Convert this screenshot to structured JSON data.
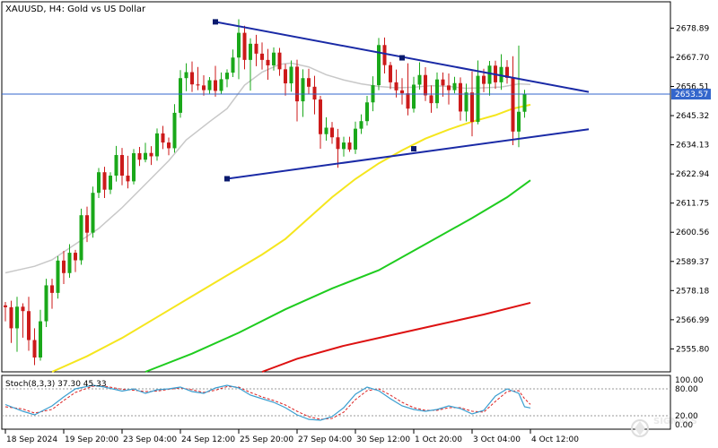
{
  "window": {
    "title": "XAUUSD, H4:  Gold vs US Dollar"
  },
  "indicator": {
    "label": "Stoch(8,3,3) 37.30 45.33"
  },
  "watermark": {
    "text": "SIGNALS"
  },
  "price_tag": {
    "value": "2653.57",
    "color": "#3366cc"
  },
  "colors": {
    "bull": "#1aa81a",
    "bear": "#cc1a1a",
    "sma_grey": "#c8c8c8",
    "sma_yellow": "#f5e61e",
    "sma_green": "#1fcc1f",
    "sma_red": "#dd1111",
    "trendline": "#1a2aa6",
    "stoch_main": "#3a9ed0",
    "stoch_signal": "#dd2222"
  },
  "chart_data": {
    "type": "candlestick",
    "symbol": "XAUUSD",
    "timeframe": "H4",
    "ylim": [
      2547.0,
      2689.0
    ],
    "y_ticks": [
      "2678.89",
      "2667.70",
      "2656.51",
      "2645.32",
      "2634.13",
      "2622.94",
      "2611.75",
      "2600.56",
      "2589.37",
      "2578.18",
      "2566.99",
      "2555.80"
    ],
    "x_ticks": [
      "18 Sep 2024",
      "19 Sep 20:00",
      "23 Sep 04:00",
      "24 Sep 12:00",
      "25 Sep 20:00",
      "27 Sep 04:00",
      "30 Sep 12:00",
      "1 Oct 20:00",
      "3 Oct 04:00",
      "4 Oct 12:00"
    ],
    "x_tick_bar_index": [
      0,
      10,
      20,
      30,
      40,
      50,
      60,
      70,
      80,
      90
    ],
    "candles": [
      [
        2572.5,
        2573.8,
        2566.4,
        2571.8
      ],
      [
        2571.8,
        2574.3,
        2558.1,
        2563.7
      ],
      [
        2563.7,
        2575.8,
        2554.7,
        2572.0
      ],
      [
        2572.0,
        2573.3,
        2560.1,
        2570.3
      ],
      [
        2570.3,
        2575.8,
        2555.1,
        2559.2
      ],
      [
        2559.2,
        2563.7,
        2549.6,
        2552.5
      ],
      [
        2552.5,
        2570.8,
        2551.3,
        2566.4
      ],
      [
        2566.4,
        2582.7,
        2564.2,
        2580.2
      ],
      [
        2580.2,
        2582.7,
        2571.2,
        2577.3
      ],
      [
        2577.3,
        2591.4,
        2575.1,
        2589.7
      ],
      [
        2589.7,
        2593.4,
        2580.7,
        2584.9
      ],
      [
        2584.9,
        2596.0,
        2583.1,
        2592.7
      ],
      [
        2592.7,
        2593.8,
        2585.3,
        2589.8
      ],
      [
        2589.8,
        2609.6,
        2588.1,
        2607.1
      ],
      [
        2607.1,
        2610.4,
        2596.8,
        2600.4
      ],
      [
        2600.4,
        2618.1,
        2598.5,
        2615.7
      ],
      [
        2615.7,
        2625.2,
        2613.7,
        2623.6
      ],
      [
        2623.6,
        2625.7,
        2613.7,
        2616.9
      ],
      [
        2616.9,
        2623.6,
        2615.2,
        2622.3
      ],
      [
        2622.3,
        2633.7,
        2620.0,
        2630.2
      ],
      [
        2630.2,
        2632.9,
        2618.6,
        2622.3
      ],
      [
        2622.3,
        2629.9,
        2617.4,
        2620.1
      ],
      [
        2620.1,
        2632.5,
        2618.9,
        2630.9
      ],
      [
        2630.9,
        2633.3,
        2626.0,
        2628.4
      ],
      [
        2628.4,
        2634.9,
        2627.4,
        2631.0
      ],
      [
        2631.0,
        2633.6,
        2626.4,
        2629.7
      ],
      [
        2629.7,
        2640.4,
        2628.0,
        2638.5
      ],
      [
        2638.5,
        2641.4,
        2632.5,
        2635.0
      ],
      [
        2635.0,
        2636.9,
        2630.1,
        2632.8
      ],
      [
        2632.8,
        2649.7,
        2631.1,
        2646.4
      ],
      [
        2646.4,
        2662.8,
        2644.5,
        2659.7
      ],
      [
        2659.7,
        2665.4,
        2654.7,
        2662.0
      ],
      [
        2662.0,
        2666.1,
        2654.4,
        2657.3
      ],
      [
        2657.3,
        2664.0,
        2655.1,
        2656.9
      ],
      [
        2656.9,
        2660.8,
        2653.0,
        2655.1
      ],
      [
        2655.1,
        2660.1,
        2653.8,
        2658.9
      ],
      [
        2658.9,
        2664.4,
        2652.6,
        2654.8
      ],
      [
        2654.8,
        2661.9,
        2653.4,
        2659.3
      ],
      [
        2659.3,
        2663.1,
        2656.2,
        2661.8
      ],
      [
        2661.8,
        2670.7,
        2660.1,
        2667.6
      ],
      [
        2667.6,
        2682.3,
        2659.3,
        2677.1
      ],
      [
        2677.1,
        2679.8,
        2663.1,
        2666.7
      ],
      [
        2666.7,
        2675.0,
        2654.9,
        2672.9
      ],
      [
        2672.9,
        2676.3,
        2664.3,
        2669.1
      ],
      [
        2669.1,
        2673.4,
        2663.0,
        2666.7
      ],
      [
        2666.7,
        2670.9,
        2659.1,
        2664.6
      ],
      [
        2664.6,
        2671.5,
        2662.6,
        2669.5
      ],
      [
        2669.5,
        2671.3,
        2660.6,
        2663.1
      ],
      [
        2663.1,
        2665.2,
        2653.0,
        2657.7
      ],
      [
        2657.7,
        2666.5,
        2654.5,
        2664.1
      ],
      [
        2664.1,
        2666.8,
        2643.1,
        2650.8
      ],
      [
        2650.8,
        2663.1,
        2644.8,
        2659.7
      ],
      [
        2659.7,
        2663.3,
        2653.4,
        2656.4
      ],
      [
        2656.4,
        2660.6,
        2645.8,
        2651.5
      ],
      [
        2651.5,
        2652.9,
        2632.6,
        2638.2
      ],
      [
        2638.2,
        2644.7,
        2635.7,
        2640.7
      ],
      [
        2640.7,
        2642.9,
        2634.5,
        2637.0
      ],
      [
        2637.0,
        2640.2,
        2625.3,
        2632.5
      ],
      [
        2632.5,
        2637.2,
        2629.6,
        2635.0
      ],
      [
        2635.0,
        2637.2,
        2631.4,
        2632.3
      ],
      [
        2632.3,
        2643.0,
        2630.6,
        2640.3
      ],
      [
        2640.3,
        2645.8,
        2638.3,
        2643.2
      ],
      [
        2643.2,
        2652.9,
        2641.5,
        2650.4
      ],
      [
        2650.4,
        2660.4,
        2647.0,
        2657.0
      ],
      [
        2657.0,
        2675.1,
        2655.1,
        2672.4
      ],
      [
        2672.4,
        2675.3,
        2661.5,
        2664.7
      ],
      [
        2664.7,
        2665.9,
        2655.5,
        2658.1
      ],
      [
        2658.1,
        2663.0,
        2652.3,
        2655.0
      ],
      [
        2655.0,
        2659.7,
        2649.6,
        2653.9
      ],
      [
        2653.9,
        2665.4,
        2645.4,
        2648.0
      ],
      [
        2648.0,
        2660.2,
        2646.5,
        2657.2
      ],
      [
        2657.2,
        2665.8,
        2655.3,
        2660.9
      ],
      [
        2660.9,
        2663.9,
        2650.9,
        2653.1
      ],
      [
        2653.1,
        2656.9,
        2646.4,
        2650.1
      ],
      [
        2650.1,
        2661.9,
        2648.1,
        2659.2
      ],
      [
        2659.2,
        2661.9,
        2652.6,
        2656.9
      ],
      [
        2656.9,
        2661.5,
        2649.6,
        2655.1
      ],
      [
        2655.1,
        2660.2,
        2653.9,
        2657.8
      ],
      [
        2657.8,
        2660.0,
        2643.4,
        2646.9
      ],
      [
        2646.9,
        2657.6,
        2643.1,
        2654.2
      ],
      [
        2654.2,
        2662.3,
        2637.4,
        2642.9
      ],
      [
        2642.9,
        2666.5,
        2642.0,
        2660.6
      ],
      [
        2660.6,
        2663.3,
        2654.3,
        2657.5
      ],
      [
        2657.5,
        2666.3,
        2653.0,
        2664.5
      ],
      [
        2664.5,
        2666.4,
        2655.6,
        2658.1
      ],
      [
        2658.1,
        2668.9,
        2655.2,
        2664.0
      ],
      [
        2664.0,
        2666.6,
        2657.6,
        2659.8
      ],
      [
        2659.8,
        2668.1,
        2634.0,
        2639.2
      ],
      [
        2639.2,
        2672.2,
        2633.2,
        2646.8
      ],
      [
        2646.8,
        2655.2,
        2644.5,
        2653.6
      ]
    ],
    "moving_averages": [
      {
        "name": "MA grey",
        "color": "#c8c8c8",
        "points": [
          [
            0,
            2585.0
          ],
          [
            2,
            2586.0
          ],
          [
            5,
            2587.5
          ],
          [
            8,
            2590.0
          ],
          [
            12,
            2596.0
          ],
          [
            16,
            2602.0
          ],
          [
            20,
            2610.0
          ],
          [
            24,
            2619.0
          ],
          [
            28,
            2628.0
          ],
          [
            31,
            2636.0
          ],
          [
            35,
            2643.0
          ],
          [
            38,
            2648.0
          ],
          [
            41,
            2657.0
          ],
          [
            44,
            2662.0
          ],
          [
            47,
            2665.0
          ],
          [
            49,
            2665.5
          ],
          [
            52,
            2664.0
          ],
          [
            55,
            2661.0
          ],
          [
            58,
            2659.0
          ],
          [
            61,
            2657.5
          ],
          [
            64,
            2656.5
          ],
          [
            67,
            2656.0
          ],
          [
            70,
            2656.2
          ],
          [
            73,
            2656.8
          ],
          [
            76,
            2656.5
          ],
          [
            79,
            2655.8
          ],
          [
            82,
            2656.0
          ],
          [
            85,
            2656.3
          ],
          [
            88,
            2657.5
          ],
          [
            90,
            2657.3
          ]
        ]
      },
      {
        "name": "MA yellow",
        "color": "#f5e61e",
        "points": [
          [
            8,
            2547.0
          ],
          [
            14,
            2553.0
          ],
          [
            20,
            2560.0
          ],
          [
            26,
            2568.0
          ],
          [
            32,
            2576.0
          ],
          [
            38,
            2584.0
          ],
          [
            44,
            2592.0
          ],
          [
            48,
            2598.0
          ],
          [
            52,
            2606.0
          ],
          [
            56,
            2614.0
          ],
          [
            60,
            2621.0
          ],
          [
            64,
            2627.0
          ],
          [
            68,
            2632.0
          ],
          [
            72,
            2636.5
          ],
          [
            76,
            2640.0
          ],
          [
            80,
            2643.0
          ],
          [
            84,
            2645.5
          ],
          [
            87,
            2648.0
          ],
          [
            90,
            2649.5
          ]
        ]
      },
      {
        "name": "MA green",
        "color": "#1fcc1f",
        "points": [
          [
            24,
            2547.0
          ],
          [
            32,
            2554.0
          ],
          [
            40,
            2562.0
          ],
          [
            48,
            2571.0
          ],
          [
            56,
            2579.0
          ],
          [
            64,
            2586.0
          ],
          [
            72,
            2596.0
          ],
          [
            80,
            2606.0
          ],
          [
            86,
            2614.0
          ],
          [
            90,
            2620.5
          ]
        ]
      },
      {
        "name": "MA red",
        "color": "#dd1111",
        "points": [
          [
            44,
            2547.0
          ],
          [
            50,
            2552.0
          ],
          [
            58,
            2557.0
          ],
          [
            66,
            2561.0
          ],
          [
            74,
            2565.0
          ],
          [
            82,
            2569.0
          ],
          [
            90,
            2573.5
          ]
        ]
      }
    ],
    "trendlines": [
      {
        "from": [
          36,
          2681.3
        ],
        "to": [
          100,
          2654.4
        ],
        "anchors": [
          [
            36,
            2681.3
          ],
          [
            68,
            2667.5
          ]
        ]
      },
      {
        "from": [
          38,
          2621.1
        ],
        "to": [
          100,
          2640.1
        ],
        "anchors": [
          [
            38,
            2621.1
          ],
          [
            70,
            2632.6
          ]
        ]
      }
    ],
    "stochastic": {
      "label": "Stoch(8,3,3) 37.30 45.33",
      "ylim": [
        0,
        100
      ],
      "levels": [
        "100.00",
        "80.00",
        "20.00",
        "0.00"
      ],
      "main": [
        [
          0,
          45
        ],
        [
          3,
          30
        ],
        [
          5,
          22
        ],
        [
          8,
          42
        ],
        [
          10,
          62
        ],
        [
          12,
          80
        ],
        [
          15,
          88
        ],
        [
          17,
          84
        ],
        [
          20,
          75
        ],
        [
          22,
          80
        ],
        [
          24,
          70
        ],
        [
          26,
          78
        ],
        [
          28,
          80
        ],
        [
          30,
          84
        ],
        [
          32,
          74
        ],
        [
          34,
          70
        ],
        [
          36,
          82
        ],
        [
          38,
          88
        ],
        [
          40,
          82
        ],
        [
          42,
          66
        ],
        [
          44,
          58
        ],
        [
          46,
          50
        ],
        [
          48,
          38
        ],
        [
          50,
          22
        ],
        [
          52,
          12
        ],
        [
          54,
          10
        ],
        [
          56,
          18
        ],
        [
          58,
          38
        ],
        [
          60,
          68
        ],
        [
          62,
          84
        ],
        [
          64,
          76
        ],
        [
          66,
          58
        ],
        [
          68,
          42
        ],
        [
          70,
          34
        ],
        [
          72,
          30
        ],
        [
          74,
          34
        ],
        [
          76,
          42
        ],
        [
          78,
          36
        ],
        [
          80,
          24
        ],
        [
          82,
          32
        ],
        [
          84,
          64
        ],
        [
          86,
          80
        ],
        [
          88,
          70
        ],
        [
          89,
          40
        ],
        [
          90,
          37.3
        ]
      ],
      "signal": [
        [
          0,
          40
        ],
        [
          3,
          35
        ],
        [
          5,
          26
        ],
        [
          8,
          34
        ],
        [
          10,
          54
        ],
        [
          12,
          72
        ],
        [
          15,
          86
        ],
        [
          17,
          86
        ],
        [
          20,
          79
        ],
        [
          22,
          77
        ],
        [
          24,
          74
        ],
        [
          26,
          75
        ],
        [
          28,
          79
        ],
        [
          30,
          82
        ],
        [
          32,
          78
        ],
        [
          34,
          72
        ],
        [
          36,
          77
        ],
        [
          38,
          85
        ],
        [
          40,
          84
        ],
        [
          42,
          72
        ],
        [
          44,
          62
        ],
        [
          46,
          54
        ],
        [
          48,
          44
        ],
        [
          50,
          30
        ],
        [
          52,
          18
        ],
        [
          54,
          12
        ],
        [
          56,
          14
        ],
        [
          58,
          28
        ],
        [
          60,
          56
        ],
        [
          62,
          76
        ],
        [
          64,
          80
        ],
        [
          66,
          66
        ],
        [
          68,
          50
        ],
        [
          70,
          38
        ],
        [
          72,
          32
        ],
        [
          74,
          32
        ],
        [
          76,
          38
        ],
        [
          78,
          38
        ],
        [
          80,
          30
        ],
        [
          82,
          28
        ],
        [
          84,
          52
        ],
        [
          86,
          74
        ],
        [
          88,
          76
        ],
        [
          89,
          58
        ],
        [
          90,
          45.33
        ]
      ]
    }
  }
}
